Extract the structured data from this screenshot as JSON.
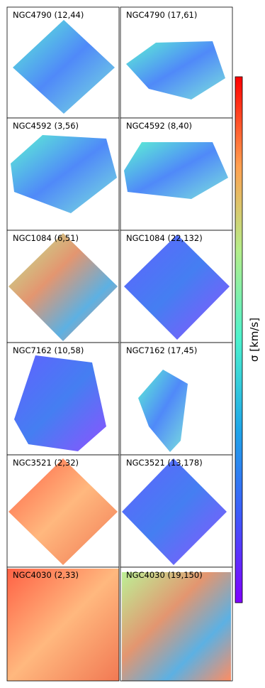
{
  "panels": [
    {
      "title": "NGC4790 (12,44)"
    },
    {
      "title": "NGC4790 (17,61)"
    },
    {
      "title": "NGC4592 (3,56)"
    },
    {
      "title": "NGC4592 (8,40)"
    },
    {
      "title": "NGC1084 (6,51)"
    },
    {
      "title": "NGC1084 (22,132)"
    },
    {
      "title": "NGC7162 (10,58)"
    },
    {
      "title": "NGC7162 (17,45)"
    },
    {
      "title": "NGC3521 (2,32)"
    },
    {
      "title": "NGC3521 (13,178)"
    },
    {
      "title": "NGC4030 (2,33)"
    },
    {
      "title": "NGC4030 (19,150)"
    }
  ],
  "colorbar": {
    "label": "σ [km/s]"
  }
}
